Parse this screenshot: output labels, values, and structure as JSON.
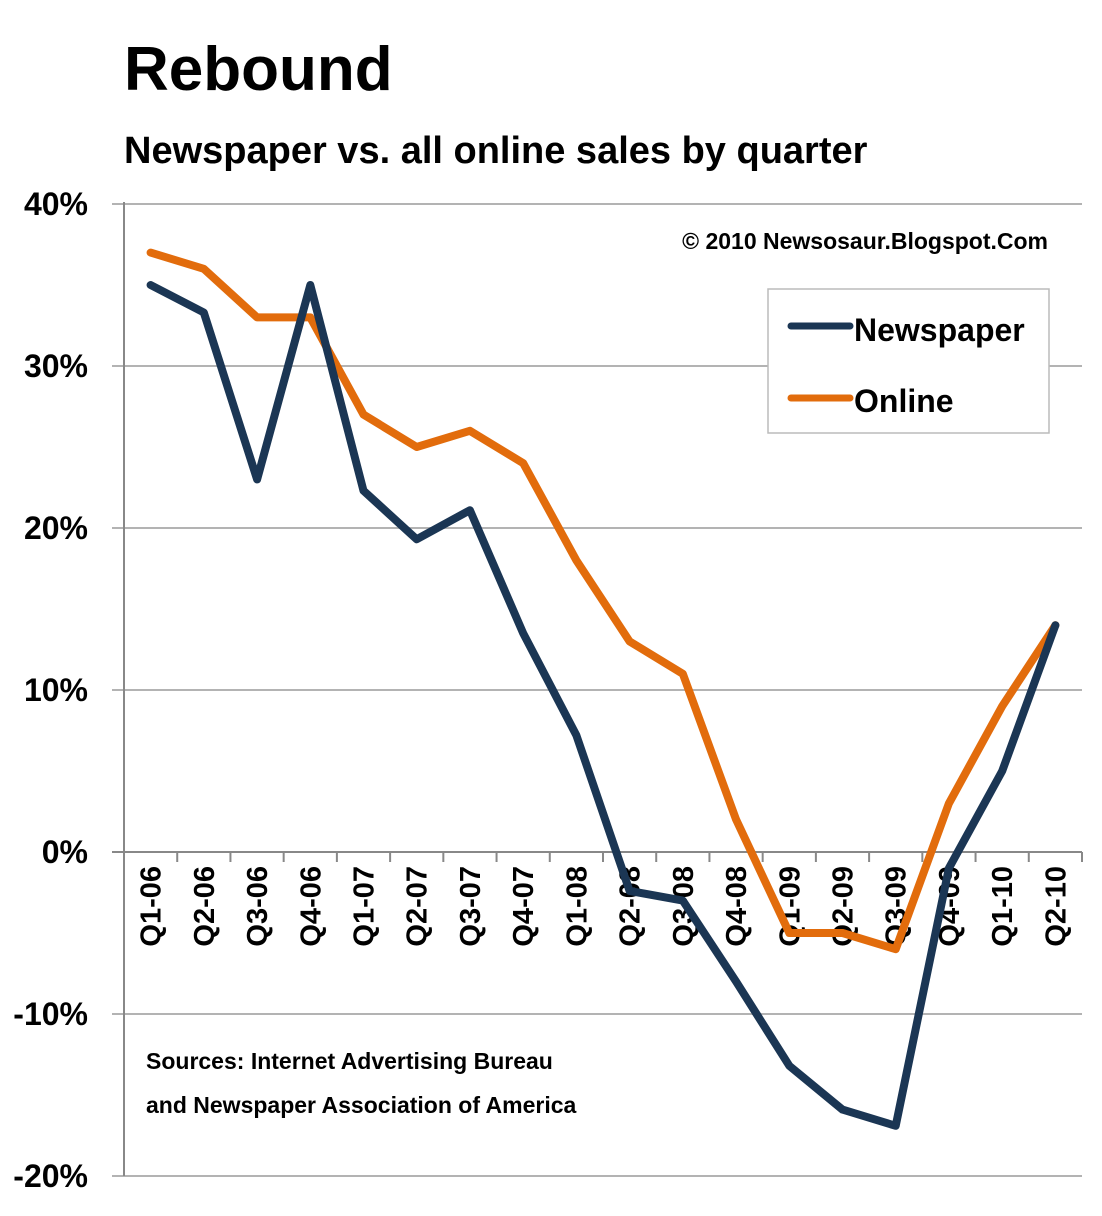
{
  "chart_data": {
    "type": "line",
    "title": "Rebound",
    "subtitle": "Newspaper vs. all online sales by quarter",
    "xlabel": "",
    "ylabel": "",
    "ylim": [
      -20,
      40
    ],
    "ytick_step": 10,
    "ytick_labels": [
      "40%",
      "30%",
      "20%",
      "10%",
      "0%",
      "-10%",
      "-20%"
    ],
    "categories": [
      "Q1-06",
      "Q2-06",
      "Q3-06",
      "Q4-06",
      "Q1-07",
      "Q2-07",
      "Q3-07",
      "Q4-07",
      "Q1-08",
      "Q2-08",
      "Q3-08",
      "Q4-08",
      "Q1-09",
      "Q2-09",
      "Q3-09",
      "Q4-09",
      "Q1-10",
      "Q2-10"
    ],
    "series": [
      {
        "name": "Newspaper",
        "color": "#1b3654",
        "values": [
          35,
          33.3,
          23,
          35,
          22.3,
          19.3,
          21.1,
          13.5,
          7.2,
          -2.4,
          -3,
          -8,
          -13.2,
          -15.9,
          -16.9,
          -1,
          5,
          14
        ]
      },
      {
        "name": "Online",
        "color": "#e26c0c",
        "values": [
          37,
          36,
          33,
          33,
          27,
          25,
          26,
          24,
          18,
          13,
          11,
          2,
          -5,
          -5,
          -6,
          3,
          9,
          14
        ]
      }
    ],
    "grid": true,
    "legend_position": "top-right",
    "copyright": "© 2010 Newsosaur.Blogspot.Com",
    "sources_line1": "Sources: Internet Advertising Bureau",
    "sources_line2": "and Newspaper Association of America"
  }
}
